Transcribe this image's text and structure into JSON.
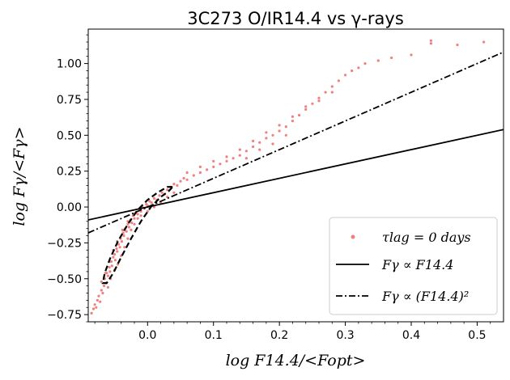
{
  "chart_data": {
    "type": "scatter",
    "title": "3C273   O/IR14.4 vs γ-rays",
    "xlabel": "log F14.4/<Fopt>",
    "ylabel": "log Fγ/<Fγ>",
    "xlim": [
      -0.09,
      0.54
    ],
    "ylim": [
      -0.8,
      1.24
    ],
    "xticks": [
      "0.0",
      "0.1",
      "0.2",
      "0.3",
      "0.4",
      "0.5"
    ],
    "xtick_values": [
      0.0,
      0.1,
      0.2,
      0.3,
      0.4,
      0.5
    ],
    "yticks": [
      "−0.75",
      "−0.50",
      "−0.25",
      "0.00",
      "0.25",
      "0.50",
      "0.75",
      "1.00"
    ],
    "ytick_values": [
      -0.75,
      -0.5,
      -0.25,
      0.0,
      0.25,
      0.5,
      0.75,
      1.0
    ],
    "grid": false,
    "legend_position": "bottom-right",
    "series": [
      {
        "name": "τlag = 0  days",
        "kind": "scatter",
        "color": "#f08080",
        "points": [
          [
            -0.085,
            -0.74
          ],
          [
            -0.082,
            -0.71
          ],
          [
            -0.08,
            -0.68
          ],
          [
            -0.078,
            -0.7
          ],
          [
            -0.076,
            -0.65
          ],
          [
            -0.074,
            -0.62
          ],
          [
            -0.072,
            -0.66
          ],
          [
            -0.07,
            -0.58
          ],
          [
            -0.068,
            -0.6
          ],
          [
            -0.066,
            -0.55
          ],
          [
            -0.065,
            -0.5
          ],
          [
            -0.063,
            -0.53
          ],
          [
            -0.062,
            -0.46
          ],
          [
            -0.06,
            -0.48
          ],
          [
            -0.058,
            -0.42
          ],
          [
            -0.057,
            -0.45
          ],
          [
            -0.055,
            -0.38
          ],
          [
            -0.054,
            -0.41
          ],
          [
            -0.052,
            -0.35
          ],
          [
            -0.05,
            -0.33
          ],
          [
            -0.049,
            -0.37
          ],
          [
            -0.047,
            -0.29
          ],
          [
            -0.046,
            -0.31
          ],
          [
            -0.044,
            -0.26
          ],
          [
            -0.042,
            -0.28
          ],
          [
            -0.041,
            -0.22
          ],
          [
            -0.039,
            -0.24
          ],
          [
            -0.037,
            -0.18
          ],
          [
            -0.036,
            -0.2
          ],
          [
            -0.034,
            -0.15
          ],
          [
            -0.032,
            -0.17
          ],
          [
            -0.03,
            -0.12
          ],
          [
            -0.028,
            -0.14
          ],
          [
            -0.026,
            -0.09
          ],
          [
            -0.024,
            -0.11
          ],
          [
            -0.022,
            -0.06
          ],
          [
            -0.02,
            -0.08
          ],
          [
            -0.018,
            -0.04
          ],
          [
            -0.015,
            -0.05
          ],
          [
            -0.012,
            -0.02
          ],
          [
            -0.01,
            -0.03
          ],
          [
            -0.008,
            0.0
          ],
          [
            -0.005,
            -0.01
          ],
          [
            -0.002,
            0.02
          ],
          [
            0.0,
            0.01
          ],
          [
            0.003,
            0.04
          ],
          [
            0.006,
            0.03
          ],
          [
            0.01,
            0.06
          ],
          [
            0.014,
            0.05
          ],
          [
            0.018,
            0.08
          ],
          [
            0.022,
            0.1
          ],
          [
            0.026,
            0.09
          ],
          [
            0.03,
            0.12
          ],
          [
            0.035,
            0.14
          ],
          [
            0.04,
            0.16
          ],
          [
            0.045,
            0.15
          ],
          [
            0.05,
            0.18
          ],
          [
            0.055,
            0.2
          ],
          [
            0.06,
            0.19
          ],
          [
            0.07,
            0.22
          ],
          [
            0.08,
            0.24
          ],
          [
            0.09,
            0.26
          ],
          [
            0.1,
            0.28
          ],
          [
            0.11,
            0.3
          ],
          [
            0.12,
            0.32
          ],
          [
            0.13,
            0.34
          ],
          [
            0.14,
            0.36
          ],
          [
            0.15,
            0.39
          ],
          [
            0.16,
            0.42
          ],
          [
            0.17,
            0.45
          ],
          [
            0.18,
            0.48
          ],
          [
            0.19,
            0.5
          ],
          [
            0.2,
            0.53
          ],
          [
            0.21,
            0.56
          ],
          [
            0.22,
            0.6
          ],
          [
            0.23,
            0.64
          ],
          [
            0.24,
            0.68
          ],
          [
            0.25,
            0.72
          ],
          [
            0.26,
            0.76
          ],
          [
            0.27,
            0.8
          ],
          [
            0.28,
            0.84
          ],
          [
            0.29,
            0.88
          ],
          [
            0.3,
            0.92
          ],
          [
            0.31,
            0.95
          ],
          [
            0.32,
            0.97
          ],
          [
            0.33,
            1.0
          ],
          [
            0.35,
            1.02
          ],
          [
            0.37,
            1.04
          ],
          [
            0.4,
            1.06
          ],
          [
            0.43,
            1.16
          ],
          [
            0.43,
            1.14
          ],
          [
            0.47,
            1.13
          ],
          [
            0.51,
            1.15
          ],
          [
            -0.06,
            -0.56
          ],
          [
            -0.056,
            -0.5
          ],
          [
            -0.05,
            -0.44
          ],
          [
            -0.045,
            -0.4
          ],
          [
            -0.04,
            -0.34
          ],
          [
            -0.035,
            -0.28
          ],
          [
            -0.03,
            -0.22
          ],
          [
            -0.025,
            -0.16
          ],
          [
            -0.02,
            -0.12
          ],
          [
            -0.015,
            -0.08
          ],
          [
            -0.01,
            -0.06
          ],
          [
            0.0,
            -0.03
          ],
          [
            0.01,
            0.0
          ],
          [
            0.02,
            0.03
          ],
          [
            0.03,
            0.07
          ],
          [
            0.04,
            0.1
          ],
          [
            -0.07,
            -0.52
          ],
          [
            -0.064,
            -0.46
          ],
          [
            -0.058,
            -0.38
          ],
          [
            -0.052,
            -0.3
          ],
          [
            -0.046,
            -0.24
          ],
          [
            -0.038,
            -0.16
          ],
          [
            -0.03,
            -0.1
          ],
          [
            -0.02,
            -0.05
          ],
          [
            0.06,
            0.24
          ],
          [
            0.08,
            0.28
          ],
          [
            0.1,
            0.32
          ],
          [
            0.12,
            0.35
          ],
          [
            0.14,
            0.4
          ],
          [
            0.16,
            0.46
          ],
          [
            0.18,
            0.52
          ],
          [
            0.2,
            0.57
          ],
          [
            0.22,
            0.63
          ],
          [
            0.24,
            0.7
          ],
          [
            0.26,
            0.74
          ],
          [
            0.28,
            0.8
          ],
          [
            0.15,
            0.34
          ],
          [
            0.17,
            0.4
          ],
          [
            0.19,
            0.44
          ],
          [
            0.21,
            0.5
          ]
        ]
      },
      {
        "name": "Fγ ∝ F14.4",
        "kind": "line",
        "style": "solid",
        "x": [
          -0.09,
          0.54
        ],
        "y": [
          -0.09,
          0.54
        ]
      },
      {
        "name": "Fγ ∝ (F14.4)²",
        "kind": "line",
        "style": "dashdot",
        "x": [
          -0.09,
          0.54
        ],
        "y": [
          -0.18,
          1.08
        ]
      },
      {
        "kind": "contour",
        "style": "dashed",
        "points": [
          [
            0.038,
            0.14
          ],
          [
            0.03,
            0.14
          ],
          [
            0.015,
            0.1
          ],
          [
            0.0,
            0.05
          ],
          [
            -0.015,
            -0.02
          ],
          [
            -0.03,
            -0.12
          ],
          [
            -0.045,
            -0.24
          ],
          [
            -0.057,
            -0.36
          ],
          [
            -0.065,
            -0.46
          ],
          [
            -0.068,
            -0.53
          ],
          [
            -0.062,
            -0.53
          ],
          [
            -0.052,
            -0.46
          ],
          [
            -0.04,
            -0.35
          ],
          [
            -0.025,
            -0.22
          ],
          [
            -0.01,
            -0.1
          ],
          [
            0.005,
            0.0
          ],
          [
            0.02,
            0.07
          ],
          [
            0.032,
            0.11
          ],
          [
            0.038,
            0.14
          ]
        ]
      }
    ],
    "legend": {
      "scatter_label": "τlag = 0  days",
      "line_label": "Fγ ∝ F14.4",
      "square_label": "Fγ ∝ (F14.4)²"
    }
  }
}
